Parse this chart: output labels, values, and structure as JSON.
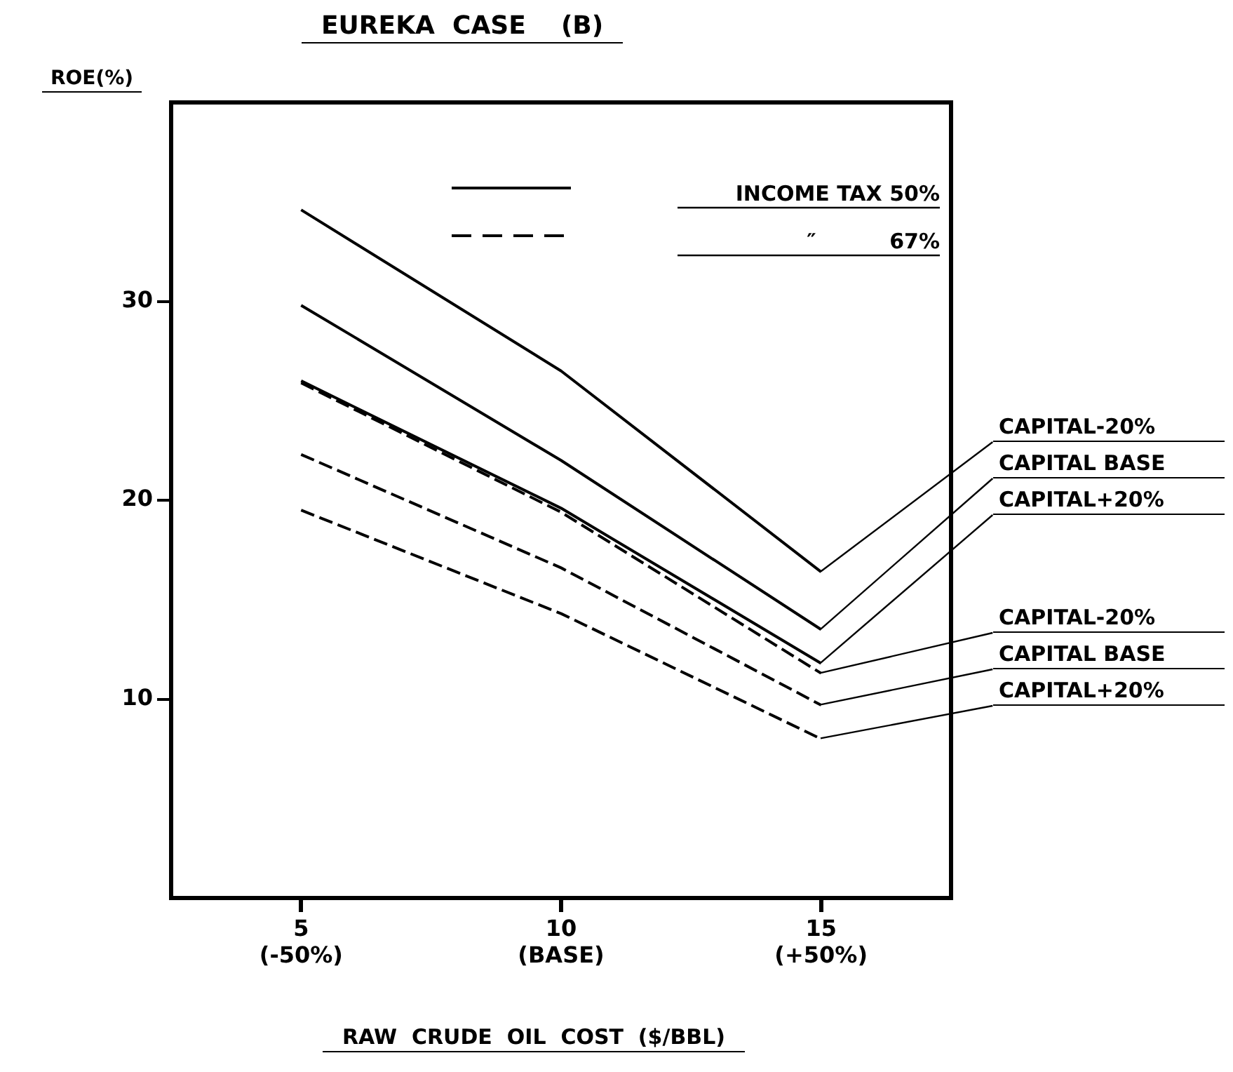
{
  "chart_data": {
    "type": "line",
    "title": "EUREKA  CASE    (B)",
    "xlabel": "RAW  CRUDE  OIL  COST  ($/BBL)",
    "ylabel": "ROE(%)",
    "categories": [
      "5\n(-50%)",
      "10\n(BASE)",
      "15\n(+50%)"
    ],
    "ylim": [
      0,
      40
    ],
    "yticks": [
      10,
      20,
      30
    ],
    "grid": false,
    "legend": false,
    "marker": "none",
    "annotations": [
      "INCOME TAX 50%",
      "″          67%"
    ],
    "series": [
      {
        "name": "CAPITAL-20%",
        "color": "#000000",
        "line_style": "solid",
        "values": [
          34.6,
          26.5,
          16.4
        ]
      },
      {
        "name": "CAPITAL BASE",
        "color": "#000000",
        "line_style": "solid",
        "values": [
          29.8,
          22.0,
          13.5
        ]
      },
      {
        "name": "CAPITAL+20%",
        "color": "#000000",
        "line_style": "solid",
        "values": [
          26.0,
          19.6,
          11.8
        ]
      },
      {
        "name": "CAPITAL-20%",
        "color": "#000000",
        "line_style": "dashed",
        "values": [
          25.9,
          19.4,
          11.3
        ]
      },
      {
        "name": "CAPITAL BASE",
        "color": "#000000",
        "line_style": "dashed",
        "values": [
          22.3,
          16.6,
          9.7
        ]
      },
      {
        "name": "CAPITAL+20%",
        "color": "#000000",
        "line_style": "dashed",
        "values": [
          19.5,
          14.3,
          8.0
        ]
      }
    ]
  }
}
